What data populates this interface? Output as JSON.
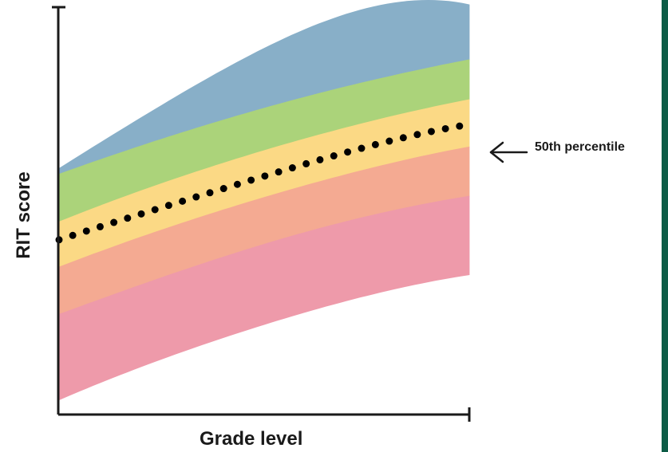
{
  "chart_data": {
    "type": "area",
    "title": "",
    "xlabel": "Grade level",
    "ylabel": "RIT score",
    "xlim": [
      0,
      1
    ],
    "ylim": [
      0,
      1
    ],
    "grid": false,
    "tick_labels": false,
    "x": [
      0,
      0.25,
      0.5,
      0.75,
      1
    ],
    "bands": [
      {
        "color": "#88afc8",
        "lower": [
          0.59,
          0.676,
          0.752,
          0.817,
          0.871
        ],
        "upper": [
          0.604,
          0.759,
          0.899,
          0.997,
          1.006
        ]
      },
      {
        "color": "#abd37a",
        "lower": [
          0.473,
          0.567,
          0.648,
          0.717,
          0.773
        ],
        "upper": [
          0.59,
          0.676,
          0.752,
          0.817,
          0.871
        ]
      },
      {
        "color": "#fbd985",
        "lower": [
          0.362,
          0.453,
          0.533,
          0.602,
          0.657
        ],
        "upper": [
          0.473,
          0.567,
          0.648,
          0.717,
          0.773
        ]
      },
      {
        "color": "#f4aa92",
        "lower": [
          0.246,
          0.336,
          0.418,
          0.486,
          0.536
        ],
        "upper": [
          0.362,
          0.453,
          0.533,
          0.602,
          0.657
        ]
      },
      {
        "color": "#ee9aaa",
        "lower": [
          0.036,
          0.136,
          0.221,
          0.292,
          0.343
        ],
        "upper": [
          0.246,
          0.336,
          0.418,
          0.486,
          0.536
        ]
      }
    ],
    "median_line": {
      "style": "dotted",
      "color": "#000000",
      "y": [
        0.429,
        0.508,
        0.585,
        0.657,
        0.712
      ]
    },
    "annotation": {
      "text": "50th percentile",
      "arrow": "left"
    },
    "edge_color": "#0d5c46"
  }
}
